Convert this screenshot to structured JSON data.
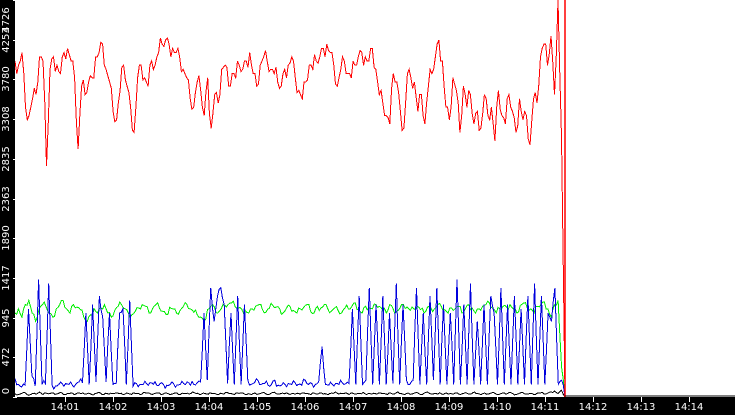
{
  "chart_data": {
    "type": "line",
    "title": "",
    "xlabel": "",
    "ylabel": "",
    "ylim": [
      0,
      4726
    ],
    "legend": "none",
    "grid": false,
    "y_ticks": [
      "0",
      "472",
      "945",
      "1417",
      "1890",
      "2363",
      "2835",
      "3308",
      "3780",
      "4253",
      "4726"
    ],
    "x_ticks": [
      "14:01",
      "14:02",
      "14:03",
      "14:04",
      "14:05",
      "14:06",
      "14:07",
      "14:08",
      "14:09",
      "14:10",
      "14:11",
      "14:12",
      "14:13",
      "14:14"
    ],
    "x_range": [
      "14:00:00",
      "14:14:40"
    ],
    "data_end": "14:11:25",
    "colors": {
      "red": "#ff0000",
      "green": "#00ee00",
      "blue": "#0000dd",
      "black": "#000000",
      "axis_bg": "#000000",
      "axis_text": "#ffffff"
    },
    "series": [
      {
        "name": "red",
        "color": "#ff0000",
        "description": "High series, ~2700-4500, dense oscillation; spikes to 4726 at end then drops to 0",
        "values": [
          4000,
          3950,
          4100,
          3450,
          3350,
          3550,
          3600,
          4050,
          4000,
          2750,
          3900,
          4050,
          3950,
          3850,
          4100,
          4150,
          4000,
          3800,
          2950,
          3700,
          3600,
          3750,
          3800,
          4050,
          4100,
          4200,
          3900,
          3750,
          3400,
          3300,
          3650,
          3950,
          3700,
          3450,
          3150,
          3800,
          3950,
          3800,
          3700,
          4000,
          3950,
          4100,
          4200,
          4250,
          4200,
          4150,
          4100,
          4050,
          3900,
          3800,
          3550,
          3450,
          3750,
          3650,
          3350,
          3800,
          3200,
          3600,
          3500,
          3900,
          3950,
          3700,
          3850,
          3800,
          3950,
          3900,
          4000,
          4100,
          3850,
          3700,
          3950,
          4050,
          4000,
          3900,
          3850,
          3750,
          3700,
          3900,
          3950,
          4050,
          3800,
          3650,
          3550,
          3750,
          3950,
          3900,
          4000,
          4050,
          4150,
          4200,
          4100,
          3950,
          3700,
          3900,
          4000,
          3850,
          3800,
          3950,
          4050,
          4100,
          4050,
          4000,
          4150,
          3900,
          3600,
          3500,
          3350,
          3250,
          3850,
          3750,
          3400,
          3200,
          3850,
          3800,
          3750,
          3400,
          3600,
          3250,
          3700,
          3850,
          4050,
          4250,
          4000,
          3450,
          3300,
          3800,
          3650,
          3150,
          3700,
          3450,
          3600,
          3250,
          3400,
          3200,
          3600,
          3350,
          3450,
          3050,
          3650,
          3350,
          3250,
          3600,
          3400,
          3150,
          3550,
          3300,
          3350,
          3000,
          3550,
          3500,
          4050,
          4200,
          3950,
          4300,
          3600,
          4726,
          3100,
          0
        ]
      },
      {
        "name": "green",
        "color": "#00ee00",
        "description": "Mid series, ~850-1200, noisy band; drops near 0 at end",
        "values": [
          1000,
          1050,
          950,
          1100,
          1150,
          1000,
          900,
          1050,
          1100,
          1080,
          1000,
          950,
          1050,
          1100,
          1150,
          1050,
          1000,
          1100,
          1070,
          1040,
          950,
          900,
          980,
          1050,
          1000,
          1060,
          1100,
          1000,
          950,
          1030,
          1080,
          1100,
          1050,
          1000,
          980,
          1020,
          1060,
          1100,
          1080,
          1000,
          1050,
          1100,
          1060,
          1020,
          980,
          1070,
          1050,
          1000,
          1030,
          1080,
          1100,
          1050,
          1010,
          980,
          950,
          900,
          1040,
          1080,
          1070,
          1000,
          1050,
          1090,
          1100,
          1120,
          1080,
          1060,
          1040,
          1030,
          1000,
          1050,
          1080,
          1100,
          1040,
          1010,
          1060,
          1090,
          1070,
          1050,
          1000,
          1060,
          1080,
          1030,
          1000,
          1050,
          1070,
          1100,
          1020,
          1000,
          1080,
          1060,
          1100,
          1050,
          1020,
          1060,
          1030,
          1000,
          1060,
          1050,
          1080,
          1120,
          1040,
          1000,
          1080,
          1060,
          1050,
          1100,
          1080,
          1030,
          1000,
          1100,
          1050,
          1020,
          1060,
          1100,
          1070,
          1030,
          1050,
          1080,
          1040,
          1000,
          1070,
          1060,
          1050,
          1100,
          1080,
          1040,
          1000,
          1060,
          1050,
          1080,
          1000,
          1050,
          1100,
          1060,
          1000,
          1050,
          1080,
          1100,
          1120,
          1060,
          1000,
          1050,
          1080,
          1070,
          1100,
          1050,
          1000,
          1090,
          1120,
          1060,
          1050,
          1000,
          1080,
          1100,
          1130,
          1050,
          950,
          1100,
          1150,
          350,
          0
        ]
      },
      {
        "name": "blue",
        "color": "#0000dd",
        "description": "Baseline ~100-200 with bursts of spikes up to ~1400 in 14:00-14:02, 14:04-14:05, 14:06:50, 14:08-14:11",
        "values": [
          220,
          150,
          120,
          140,
          1050,
          250,
          130,
          1400,
          150,
          160,
          1350,
          140,
          130,
          150,
          160,
          160,
          150,
          140,
          150,
          180,
          170,
          1000,
          150,
          1100,
          180,
          1200,
          950,
          180,
          1000,
          150,
          160,
          1000,
          1050,
          150,
          1150,
          130,
          160,
          150,
          150,
          160,
          170,
          150,
          140,
          160,
          150,
          140,
          150,
          160,
          140,
          150,
          160,
          180,
          140,
          150,
          170,
          180,
          1000,
          200,
          1300,
          900,
          1200,
          1300,
          1100,
          160,
          1000,
          150,
          1200,
          150,
          1100,
          200,
          150,
          170,
          200,
          150,
          160,
          140,
          150,
          200,
          140,
          140,
          150,
          160,
          150,
          170,
          150,
          140,
          200,
          150,
          160,
          150,
          180,
          600,
          150,
          140,
          150,
          160,
          150,
          170,
          160,
          160,
          1050,
          150,
          1200,
          150,
          200,
          1300,
          150,
          1100,
          150,
          1200,
          150,
          1000,
          160,
          1350,
          150,
          1100,
          200,
          150,
          200,
          1300,
          150,
          1000,
          150,
          1200,
          200,
          1300,
          150,
          1100,
          150,
          1000,
          150,
          1400,
          150,
          1100,
          150,
          1350,
          150,
          900,
          150,
          1100,
          150,
          1200,
          1000,
          150,
          1300,
          150,
          1100,
          150,
          1200,
          150,
          1050,
          150,
          1200,
          150,
          1350,
          150,
          1200,
          150,
          1000,
          900,
          1300,
          150,
          200,
          0
        ]
      },
      {
        "name": "black",
        "color": "#000000",
        "description": "Low series, ~10-80, small noise; drops to 0 at end",
        "values": [
          40,
          30,
          45,
          50,
          20,
          40,
          35,
          60,
          30,
          45,
          40,
          50,
          35,
          55,
          30,
          40,
          45,
          30,
          50,
          40,
          35,
          45,
          30,
          40,
          55,
          30,
          45,
          35,
          40,
          50,
          40,
          30,
          45,
          35,
          50,
          40,
          30,
          55,
          45,
          35,
          40,
          50,
          30,
          45,
          40,
          35,
          50,
          30,
          45,
          40,
          35,
          60,
          40,
          30,
          45,
          35,
          50,
          40,
          30,
          45,
          35,
          55,
          40,
          30,
          45,
          50,
          35,
          40,
          30,
          45,
          35,
          50,
          40,
          30,
          55,
          40,
          35,
          45,
          50,
          30,
          40,
          45,
          35,
          50,
          40,
          30,
          45,
          35,
          50,
          40,
          30,
          45,
          60,
          35,
          40,
          50,
          30,
          45,
          35,
          40,
          55,
          30,
          40,
          45,
          35,
          50,
          40,
          30,
          45,
          35,
          60,
          40,
          30,
          45,
          35,
          50,
          40,
          30,
          55,
          45,
          35,
          40,
          50,
          30,
          45,
          40,
          35,
          50,
          30,
          45,
          40,
          35,
          60,
          40,
          30,
          45,
          35,
          50,
          40,
          30,
          45,
          35,
          55,
          40,
          30,
          45,
          50,
          35,
          40,
          30,
          45,
          50,
          35,
          45,
          60,
          70,
          40,
          80,
          0
        ]
      }
    ]
  }
}
